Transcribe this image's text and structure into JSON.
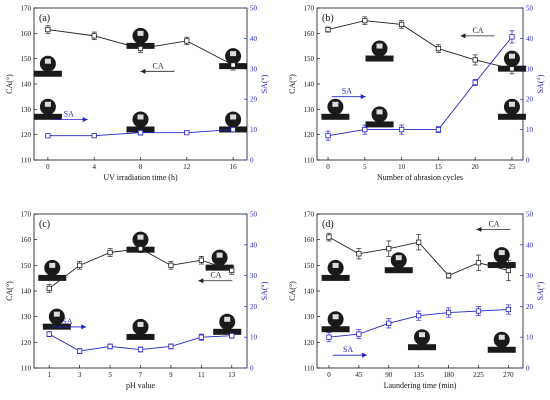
{
  "colors": {
    "ca": "#222222",
    "sa": "#2424c8",
    "axis": "#111111",
    "drop": "#1a1a1a"
  },
  "chart_data": [
    {
      "panel": "(a)",
      "type": "line",
      "xlabel": "UV irradiation time (h)",
      "ylabel_left": "CA(°)",
      "ylabel_right": "SA(°)",
      "x": [
        0,
        4,
        8,
        12,
        16
      ],
      "xlim": [
        -1.2,
        17.2
      ],
      "xticks": [
        0,
        4,
        8,
        12,
        16
      ],
      "ylim_left": [
        110,
        170
      ],
      "yticks_left": [
        110,
        120,
        130,
        140,
        150,
        160,
        170
      ],
      "ylim_right": [
        0,
        50
      ],
      "yticks_right": [
        0,
        10,
        20,
        30,
        40,
        50
      ],
      "series": [
        {
          "name": "CA",
          "axis": "left",
          "values": [
            161.5,
            159,
            154,
            157,
            147.5
          ],
          "err": [
            1.5,
            1.5,
            1.5,
            1.5,
            2
          ]
        },
        {
          "name": "SA",
          "axis": "right",
          "values": [
            8,
            8,
            9,
            9,
            10
          ],
          "err": [
            0.5,
            0.5,
            0.8,
            0.5,
            0.5
          ]
        }
      ],
      "annotations": [
        {
          "text": "CA",
          "dir": "left",
          "ax": 8,
          "ay": 145
        },
        {
          "text": "SA",
          "dir": "right",
          "ax": 0.5,
          "ay": 126
        }
      ],
      "drops": [
        {
          "x": 0,
          "y": 148
        },
        {
          "x": 8,
          "y": 159
        },
        {
          "x": 16,
          "y": 151
        },
        {
          "x": 0,
          "y": 131
        },
        {
          "x": 8,
          "y": 126
        },
        {
          "x": 16,
          "y": 126
        }
      ]
    },
    {
      "panel": "(b)",
      "type": "line",
      "xlabel": "Number of abrasion cycles",
      "ylabel_left": "CA(°)",
      "ylabel_right": "SA(°)",
      "x": [
        0,
        5,
        10,
        15,
        20,
        25
      ],
      "xlim": [
        -1.5,
        26.5
      ],
      "xticks": [
        0,
        5,
        10,
        15,
        20,
        25
      ],
      "ylim_left": [
        110,
        170
      ],
      "yticks_left": [
        110,
        120,
        130,
        140,
        150,
        160,
        170
      ],
      "ylim_right": [
        0,
        50
      ],
      "yticks_right": [
        0,
        10,
        20,
        30,
        40,
        50
      ],
      "series": [
        {
          "name": "CA",
          "axis": "left",
          "values": [
            161.5,
            165,
            163.5,
            154,
            149.5,
            146
          ],
          "err": [
            1,
            1.5,
            1.5,
            1.5,
            2,
            2
          ]
        },
        {
          "name": "SA",
          "axis": "right",
          "values": [
            8,
            10,
            10,
            10,
            25.5,
            40.5
          ],
          "err": [
            1.5,
            1.5,
            1.5,
            1,
            1,
            2
          ]
        }
      ],
      "annotations": [
        {
          "text": "CA",
          "dir": "left",
          "ax": 18,
          "ay": 159
        },
        {
          "text": "SA",
          "dir": "right",
          "ax": 0.5,
          "ay": 135
        }
      ],
      "drops": [
        {
          "x": 7,
          "y": 154
        },
        {
          "x": 25,
          "y": 150
        },
        {
          "x": 1,
          "y": 131
        },
        {
          "x": 7,
          "y": 128
        },
        {
          "x": 25,
          "y": 131
        }
      ]
    },
    {
      "panel": "(c)",
      "type": "line",
      "xlabel": "pH value",
      "ylabel_left": "CA(°)",
      "ylabel_right": "SA(°)",
      "x": [
        1,
        3,
        5,
        7,
        9,
        11,
        13
      ],
      "xlim": [
        0,
        14
      ],
      "xticks": [
        1,
        3,
        5,
        7,
        9,
        11,
        13
      ],
      "ylim_left": [
        110,
        170
      ],
      "yticks_left": [
        110,
        120,
        130,
        140,
        150,
        160,
        170
      ],
      "ylim_right": [
        0,
        50
      ],
      "yticks_right": [
        0,
        10,
        20,
        30,
        40,
        50
      ],
      "series": [
        {
          "name": "CA",
          "axis": "left",
          "values": [
            141,
            150,
            155,
            156.5,
            150,
            152,
            148
          ],
          "err": [
            1.5,
            1.5,
            1.5,
            1.5,
            1.5,
            1.5,
            1.5
          ]
        },
        {
          "name": "SA",
          "axis": "right",
          "values": [
            11,
            5.5,
            7,
            6,
            7,
            10,
            10.5
          ],
          "err": [
            0.8,
            0.8,
            0.8,
            0.8,
            0.8,
            1,
            0.8
          ]
        }
      ],
      "annotations": [
        {
          "text": "CA",
          "dir": "left",
          "ax": 10.8,
          "ay": 144
        },
        {
          "text": "SA",
          "dir": "right",
          "ax": 1.2,
          "ay": 126
        }
      ],
      "drops": [
        {
          "x": 1.2,
          "y": 149
        },
        {
          "x": 7,
          "y": 160
        },
        {
          "x": 12.2,
          "y": 153
        },
        {
          "x": 1.5,
          "y": 130
        },
        {
          "x": 7,
          "y": 126
        },
        {
          "x": 12.7,
          "y": 128
        }
      ]
    },
    {
      "panel": "(d)",
      "type": "line",
      "xlabel": "Laundering time (min)",
      "ylabel_left": "CA(°)",
      "ylabel_right": "SA(°)",
      "x": [
        0,
        45,
        90,
        135,
        180,
        225,
        270
      ],
      "xlim": [
        -18,
        292
      ],
      "xticks": [
        0,
        45,
        90,
        135,
        180,
        225,
        270
      ],
      "ylim_left": [
        110,
        170
      ],
      "yticks_left": [
        110,
        120,
        130,
        140,
        150,
        160,
        170
      ],
      "ylim_right": [
        0,
        50
      ],
      "yticks_right": [
        0,
        10,
        20,
        30,
        40,
        50
      ],
      "series": [
        {
          "name": "CA",
          "axis": "left",
          "values": [
            161,
            154.5,
            156.5,
            159,
            146,
            151,
            148
          ],
          "err": [
            1.5,
            2,
            3,
            3,
            1,
            3,
            4
          ]
        },
        {
          "name": "SA",
          "axis": "right",
          "values": [
            10,
            11,
            14.5,
            17,
            18,
            18.5,
            19
          ],
          "err": [
            1.5,
            1.5,
            1.5,
            1.5,
            1.5,
            1.5,
            1.5
          ]
        }
      ],
      "annotations": [
        {
          "text": "CA",
          "dir": "left",
          "ax": 222,
          "ay": 164
        },
        {
          "text": "SA",
          "dir": "right",
          "ax": 6,
          "ay": 115
        }
      ],
      "drops": [
        {
          "x": 10,
          "y": 149
        },
        {
          "x": 105,
          "y": 152
        },
        {
          "x": 260,
          "y": 154
        },
        {
          "x": 10,
          "y": 129
        },
        {
          "x": 140,
          "y": 122
        },
        {
          "x": 260,
          "y": 121
        }
      ]
    }
  ]
}
